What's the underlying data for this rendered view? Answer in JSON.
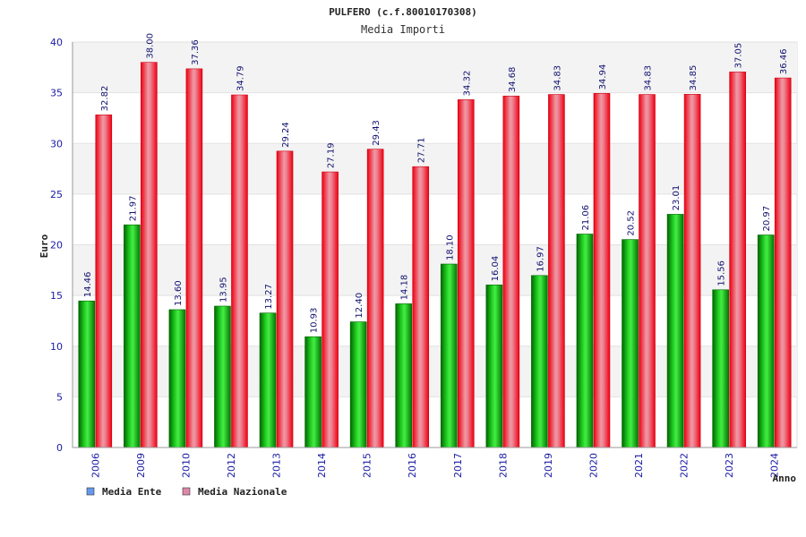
{
  "chart_data": {
    "type": "bar",
    "title": "PULFERO (c.f.80010170308)",
    "subtitle": "Media Importi",
    "xlabel": "Anno",
    "ylabel": "Euro",
    "ylim": [
      0,
      40
    ],
    "yticks": [
      0,
      5,
      10,
      15,
      20,
      25,
      30,
      35,
      40
    ],
    "categories": [
      "2006",
      "2009",
      "2010",
      "2012",
      "2013",
      "2014",
      "2015",
      "2016",
      "2017",
      "2018",
      "2019",
      "2020",
      "2021",
      "2022",
      "2023",
      "2024"
    ],
    "series": [
      {
        "name": "Media Ente",
        "color": "#00aa00",
        "legend_color": "#6699ee",
        "values": [
          14.46,
          21.97,
          13.6,
          13.95,
          13.27,
          10.93,
          12.4,
          14.18,
          18.1,
          16.04,
          16.97,
          21.06,
          20.52,
          23.01,
          15.56,
          20.97
        ],
        "labels": [
          "14.46",
          "21.97",
          "13.60",
          "13.95",
          "13.27",
          "10.93",
          "12.40",
          "14.18",
          "18.10",
          "16.04",
          "16.97",
          "21.06",
          "20.52",
          "23.01",
          "15.56",
          "20.97"
        ]
      },
      {
        "name": "Media Nazionale",
        "color": "#ee1122",
        "legend_color": "#dd88aa",
        "values": [
          32.82,
          38.0,
          37.36,
          34.79,
          29.24,
          27.19,
          29.43,
          27.71,
          34.32,
          34.68,
          34.83,
          34.94,
          34.83,
          34.85,
          37.05,
          36.46
        ],
        "labels": [
          "32.82",
          "38.00",
          "37.36",
          "34.79",
          "29.24",
          "27.19",
          "29.43",
          "27.71",
          "34.32",
          "34.68",
          "34.83",
          "34.94",
          "34.83",
          "34.85",
          "37.05",
          "36.46"
        ]
      }
    ],
    "grid": true,
    "legend": "bottom-left"
  }
}
